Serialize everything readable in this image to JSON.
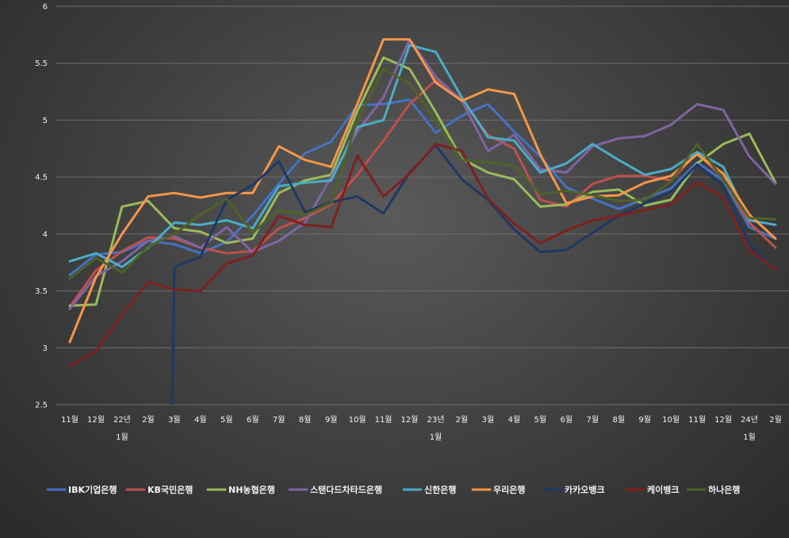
{
  "chart_data": {
    "type": "line",
    "title": "",
    "xlabel": "",
    "ylabel": "",
    "ylim": [
      2.5,
      6
    ],
    "yticks": [
      "2.5",
      "3",
      "3.5",
      "4",
      "4.5",
      "5",
      "5.5",
      "6"
    ],
    "grid": true,
    "legend_position": "bottom",
    "categories": [
      "11월",
      "12월",
      "22년 1월",
      "2월",
      "3월",
      "4월",
      "5월",
      "6월",
      "7월",
      "8월",
      "9월",
      "10월",
      "11월",
      "12월",
      "23년 1월",
      "2월",
      "3월",
      "4월",
      "5월",
      "6월",
      "7월",
      "8월",
      "9월",
      "10월",
      "11월",
      "12월",
      "24년 1월",
      "2월"
    ],
    "x_labels": [
      {
        "line1": "11월",
        "line2": ""
      },
      {
        "line1": "12월",
        "line2": ""
      },
      {
        "line1": "22년",
        "line2": "1월"
      },
      {
        "line1": "2월",
        "line2": ""
      },
      {
        "line1": "3월",
        "line2": ""
      },
      {
        "line1": "4월",
        "line2": ""
      },
      {
        "line1": "5월",
        "line2": ""
      },
      {
        "line1": "6월",
        "line2": ""
      },
      {
        "line1": "7월",
        "line2": ""
      },
      {
        "line1": "8월",
        "line2": ""
      },
      {
        "line1": "9월",
        "line2": ""
      },
      {
        "line1": "10월",
        "line2": ""
      },
      {
        "line1": "11월",
        "line2": ""
      },
      {
        "line1": "12월",
        "line2": ""
      },
      {
        "line1": "23년",
        "line2": "1월"
      },
      {
        "line1": "2월",
        "line2": ""
      },
      {
        "line1": "3월",
        "line2": ""
      },
      {
        "line1": "4월",
        "line2": ""
      },
      {
        "line1": "5월",
        "line2": ""
      },
      {
        "line1": "6월",
        "line2": ""
      },
      {
        "line1": "7월",
        "line2": ""
      },
      {
        "line1": "8월",
        "line2": ""
      },
      {
        "line1": "9월",
        "line2": ""
      },
      {
        "line1": "10월",
        "line2": ""
      },
      {
        "line1": "11월",
        "line2": ""
      },
      {
        "line1": "12월",
        "line2": ""
      },
      {
        "line1": "24년",
        "line2": "1월"
      },
      {
        "line1": "2월",
        "line2": ""
      }
    ],
    "series": [
      {
        "name": "IBK기업은행",
        "color": "#4472c4",
        "values": [
          3.64,
          3.82,
          3.84,
          3.94,
          3.91,
          3.83,
          3.93,
          4.16,
          4.44,
          4.71,
          4.81,
          5.13,
          5.14,
          5.18,
          4.89,
          5.04,
          5.14,
          4.9,
          4.68,
          4.41,
          4.31,
          4.22,
          4.31,
          4.4,
          4.63,
          4.47,
          4.06,
          3.96
        ]
      },
      {
        "name": "KB국민은행",
        "color": "#c0504d",
        "values": [
          3.36,
          3.68,
          3.85,
          3.97,
          3.96,
          3.88,
          3.83,
          3.85,
          4.05,
          4.14,
          4.26,
          4.52,
          4.82,
          5.14,
          5.35,
          5.18,
          4.87,
          4.75,
          4.3,
          4.24,
          4.44,
          4.51,
          4.51,
          4.47,
          4.71,
          4.49,
          4.1,
          3.88
        ]
      },
      {
        "name": "NH농협은행",
        "color": "#9bbb59",
        "values": [
          3.37,
          3.38,
          4.24,
          4.29,
          4.05,
          4.02,
          3.92,
          3.96,
          4.36,
          4.47,
          4.52,
          5.08,
          5.55,
          5.45,
          5.07,
          4.66,
          4.54,
          4.48,
          4.24,
          4.26,
          4.37,
          4.39,
          4.25,
          4.3,
          4.62,
          4.79,
          4.88,
          4.45
        ]
      },
      {
        "name": "스탠다드차타드은행",
        "color": "#8064a2",
        "values": [
          3.34,
          3.63,
          3.76,
          3.94,
          3.98,
          3.88,
          4.06,
          3.84,
          3.94,
          4.1,
          4.5,
          4.9,
          5.2,
          5.71,
          5.38,
          5.17,
          4.73,
          4.87,
          4.57,
          4.54,
          4.77,
          4.84,
          4.86,
          4.96,
          5.14,
          5.09,
          4.68,
          4.44
        ]
      },
      {
        "name": "신한은행",
        "color": "#4bacc6",
        "values": [
          3.76,
          3.83,
          3.71,
          3.88,
          4.1,
          4.08,
          4.12,
          4.05,
          4.42,
          4.45,
          4.47,
          4.94,
          5.0,
          5.66,
          5.6,
          5.2,
          4.85,
          4.82,
          4.54,
          4.62,
          4.79,
          4.65,
          4.52,
          4.57,
          4.72,
          4.59,
          4.12,
          4.08
        ]
      },
      {
        "name": "우리은행",
        "color": "#f79646",
        "values": [
          3.05,
          3.62,
          4.0,
          4.33,
          4.36,
          4.32,
          4.36,
          4.36,
          4.77,
          4.65,
          4.59,
          5.14,
          5.71,
          5.71,
          5.33,
          5.17,
          5.27,
          5.23,
          4.7,
          4.27,
          4.33,
          4.34,
          4.45,
          4.51,
          4.7,
          4.53,
          4.17,
          3.96
        ]
      },
      {
        "name": "카카오뱅크",
        "color": "#1f3864",
        "values": [
          null,
          null,
          null,
          null,
          3.71,
          3.8,
          4.3,
          4.43,
          4.64,
          4.19,
          4.28,
          4.33,
          4.18,
          4.54,
          4.78,
          4.48,
          4.3,
          4.04,
          3.84,
          3.86,
          4.01,
          4.16,
          4.27,
          4.37,
          4.61,
          4.42,
          3.91,
          3.69
        ]
      },
      {
        "name": "케이뱅크",
        "color": "#7f2020",
        "values": [
          2.84,
          2.97,
          3.29,
          3.58,
          3.51,
          3.5,
          3.74,
          3.81,
          4.16,
          4.08,
          4.06,
          4.69,
          4.33,
          4.53,
          4.79,
          4.73,
          4.31,
          4.09,
          3.92,
          4.03,
          4.12,
          4.16,
          4.21,
          4.26,
          4.45,
          4.32,
          3.86,
          3.69
        ]
      },
      {
        "name": "하나은행",
        "color": "#4f6228",
        "values": [
          3.61,
          3.79,
          3.66,
          3.89,
          4.0,
          4.17,
          4.31,
          4.01,
          4.21,
          4.17,
          4.27,
          5.0,
          5.45,
          5.32,
          5.0,
          4.65,
          4.63,
          4.6,
          4.35,
          4.38,
          4.34,
          4.29,
          4.3,
          4.46,
          4.79,
          4.48,
          4.14,
          4.13
        ]
      }
    ]
  }
}
